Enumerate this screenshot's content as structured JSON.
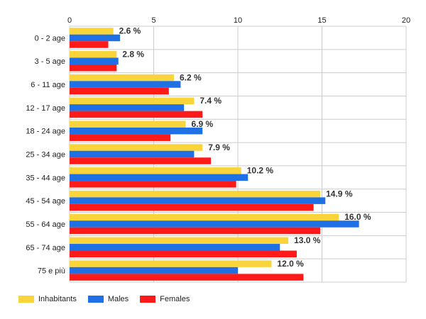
{
  "chart_data": {
    "type": "bar",
    "orientation": "horizontal",
    "categories": [
      "0 - 2 age",
      "3 - 5 age",
      "6 - 11 age",
      "12 - 17 age",
      "18 - 24 age",
      "25 - 34 age",
      "35 - 44 age",
      "45 - 54 age",
      "55 - 64 age",
      "65 - 74 age",
      "75 e più"
    ],
    "series": [
      {
        "name": "Inhabitants",
        "color": "#f9d43b",
        "values": [
          2.6,
          2.8,
          6.2,
          7.4,
          6.9,
          7.9,
          10.2,
          14.9,
          16.0,
          13.0,
          12.0
        ]
      },
      {
        "name": "Males",
        "color": "#1f6fe5",
        "values": [
          3.0,
          2.9,
          6.6,
          6.8,
          7.9,
          7.4,
          10.6,
          15.2,
          17.2,
          12.5,
          10.0
        ]
      },
      {
        "name": "Females",
        "color": "#ff1a1a",
        "values": [
          2.3,
          2.8,
          5.9,
          7.9,
          6.0,
          8.4,
          9.9,
          14.5,
          14.9,
          13.5,
          13.9
        ]
      }
    ],
    "data_labels": [
      "2.6 %",
      "2.8 %",
      "6.2 %",
      "7.4 %",
      "6.9 %",
      "7.9 %",
      "10.2 %",
      "14.9 %",
      "16.0 %",
      "13.0 %",
      "12.0 %"
    ],
    "x_ticks": [
      "0",
      "5",
      "10",
      "15",
      "20"
    ],
    "xlim": [
      0,
      20
    ],
    "grid": true,
    "legend_position": "bottom-left",
    "gridline_color": "#cccccc",
    "title": "",
    "xlabel": "",
    "ylabel": ""
  }
}
